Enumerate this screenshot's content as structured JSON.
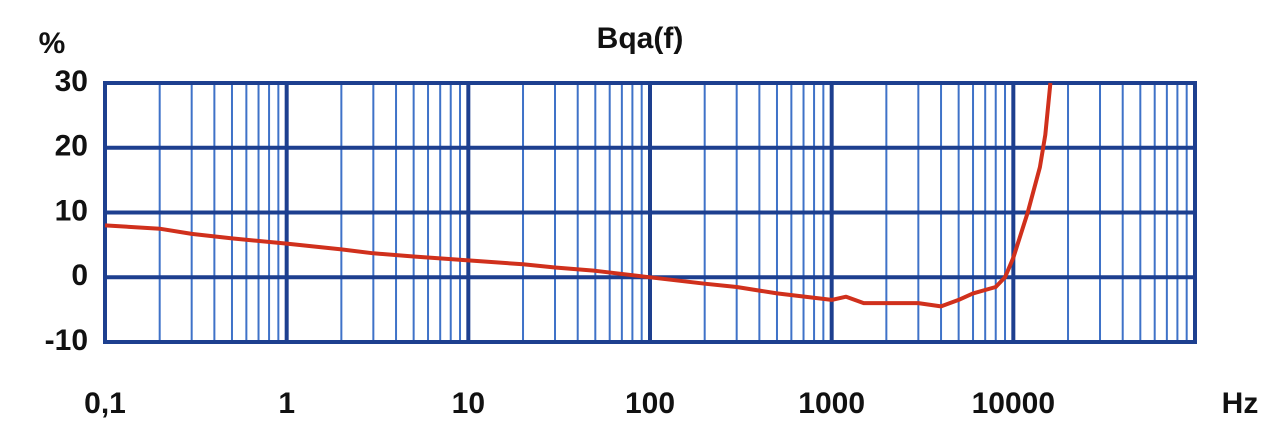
{
  "chart_data": {
    "type": "line",
    "title": "Bqa(f)",
    "y_label": "%",
    "x_label": "Hz",
    "x_scale": "log",
    "grid": true,
    "minor_grid": true,
    "xlim": [
      0.1,
      100000
    ],
    "ylim": [
      -10,
      30
    ],
    "xticks": [
      {
        "value": 0.1,
        "label": "0,1"
      },
      1,
      10,
      100,
      1000,
      10000
    ],
    "yticks": [
      -10,
      0,
      10,
      20,
      30
    ],
    "series": [
      {
        "name": "Bqa(f)",
        "color": "#d0301c",
        "x": [
          0.1,
          0.2,
          0.3,
          0.5,
          1,
          2,
          3,
          5,
          10,
          20,
          30,
          50,
          100,
          200,
          300,
          500,
          1000,
          1200,
          1500,
          2000,
          3000,
          4000,
          5000,
          6000,
          8000,
          9000,
          10000,
          12000,
          14000,
          15000,
          16000
        ],
        "values": [
          8,
          7.5,
          6.7,
          6,
          5.2,
          4.3,
          3.7,
          3.2,
          2.6,
          2,
          1.5,
          1,
          0,
          -1,
          -1.5,
          -2.5,
          -3.5,
          -3,
          -4,
          -4,
          -4,
          -4.5,
          -3.5,
          -2.5,
          -1.5,
          0,
          3,
          10,
          17,
          22,
          30
        ]
      }
    ]
  }
}
